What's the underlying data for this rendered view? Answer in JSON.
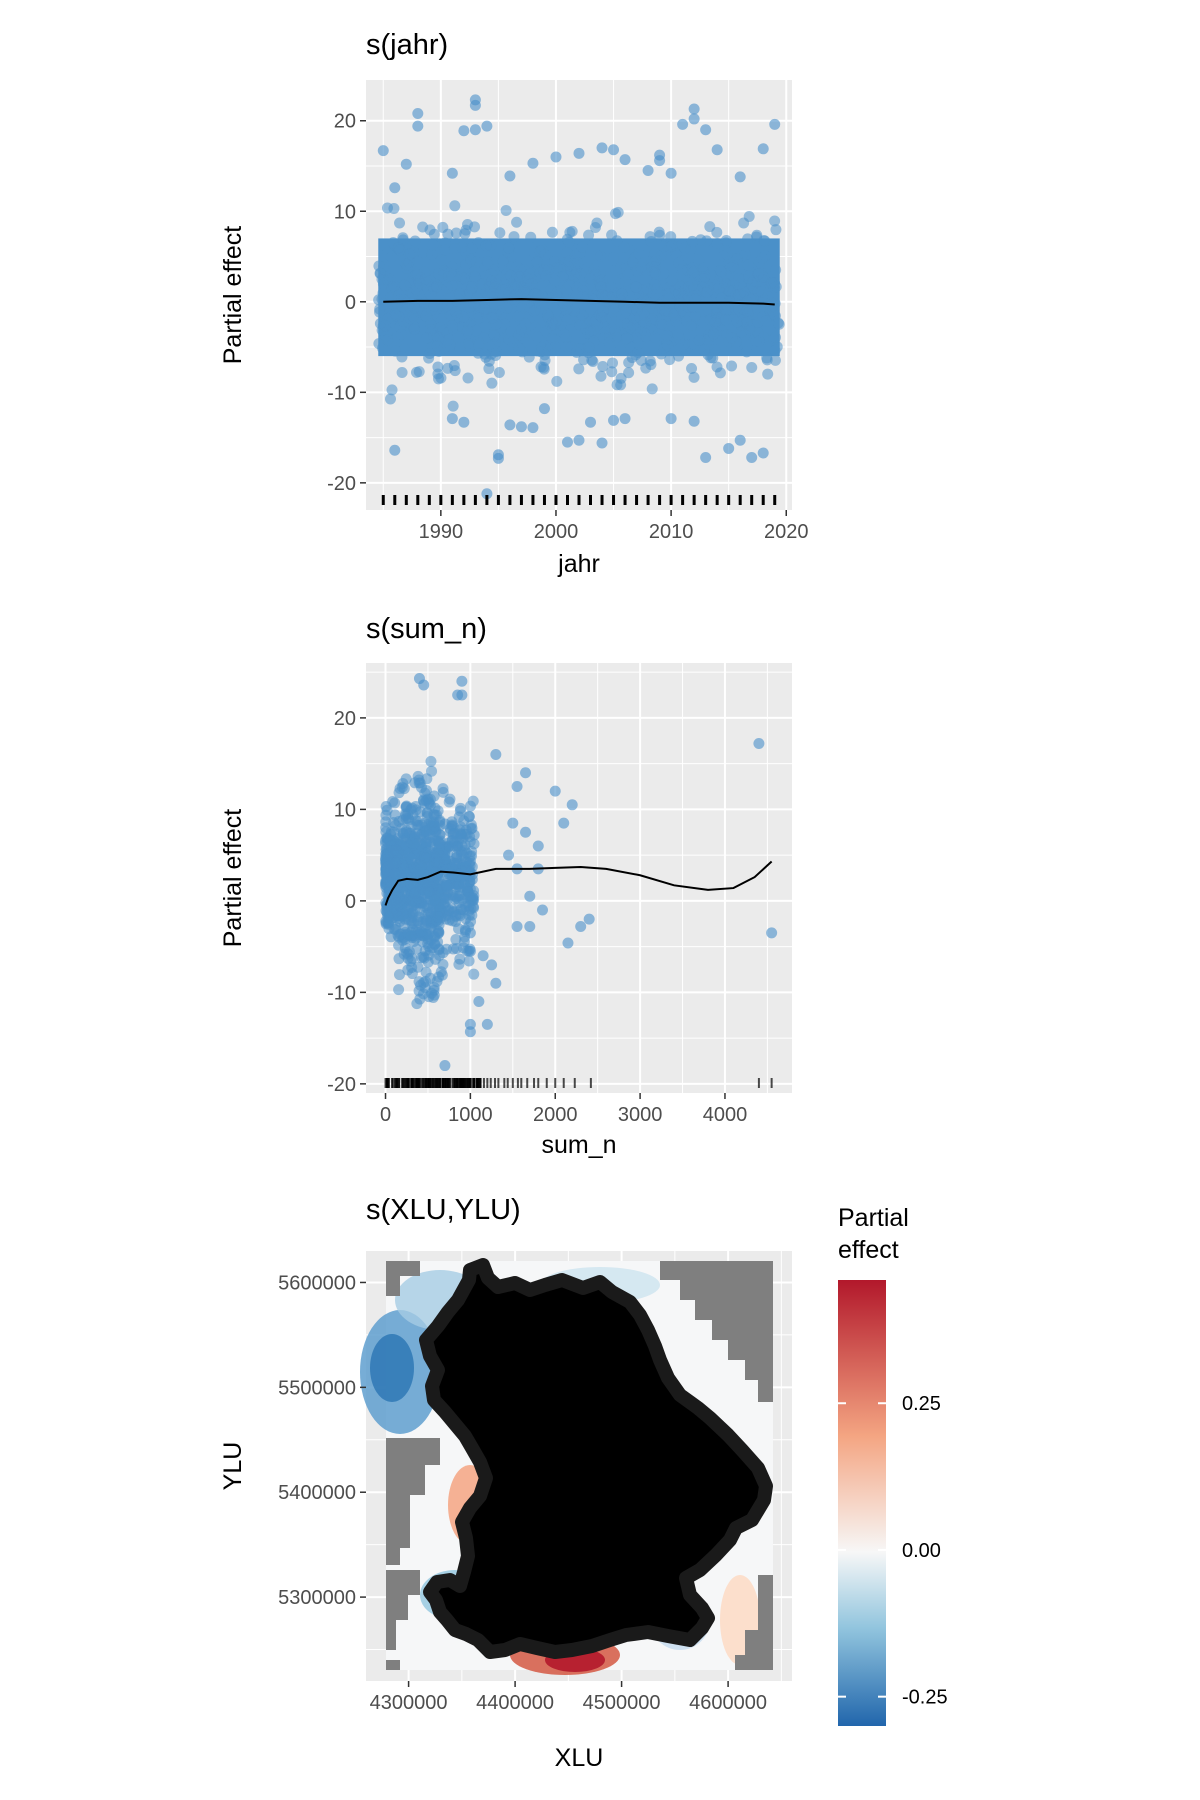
{
  "colors": {
    "panel_bg": "#ebebeb",
    "grid": "#ffffff",
    "points": "#4a90c9",
    "smooth_line": "#000000",
    "map_points": "#000000",
    "na_cells": "#7f7f7f",
    "diverging_low": "#2166ac",
    "diverging_mid": "#f7f7f7",
    "diverging_high": "#b2182b"
  },
  "chart_data": [
    {
      "type": "scatter",
      "title": "s(jahr)",
      "xlabel": "jahr",
      "ylabel": "Partial effect",
      "xlim": [
        1983.5,
        2020.5
      ],
      "ylim": [
        -23,
        24.5
      ],
      "xticks": [
        1990,
        2000,
        2010,
        2020
      ],
      "yticks": [
        -20,
        -10,
        0,
        10,
        20
      ],
      "grid": true,
      "point_cloud": {
        "x_range": [
          1985,
          2019
        ],
        "core_band": [
          -4,
          5
        ],
        "outer_band": [
          -11,
          12
        ],
        "years": [
          1985,
          1986,
          1987,
          1988,
          1989,
          1990,
          1991,
          1992,
          1993,
          1994,
          1995,
          1996,
          1997,
          1998,
          1999,
          2000,
          2001,
          2002,
          2003,
          2004,
          2005,
          2006,
          2007,
          2008,
          2009,
          2010,
          2011,
          2012,
          2013,
          2014,
          2015,
          2016,
          2017,
          2018,
          2019
        ]
      },
      "outliers": [
        [
          1985,
          16.7
        ],
        [
          1986,
          12.6
        ],
        [
          1987,
          15.2
        ],
        [
          1988,
          20.8
        ],
        [
          1988,
          19.4
        ],
        [
          1991,
          14.2
        ],
        [
          1992,
          18.9
        ],
        [
          1993,
          22.3
        ],
        [
          1993,
          21.7
        ],
        [
          1993,
          19.0
        ],
        [
          1994,
          19.4
        ],
        [
          1996,
          13.9
        ],
        [
          1998,
          15.3
        ],
        [
          2000,
          16.0
        ],
        [
          2002,
          16.4
        ],
        [
          2004,
          17.0
        ],
        [
          2005,
          16.8
        ],
        [
          2006,
          15.7
        ],
        [
          2008,
          14.5
        ],
        [
          2009,
          16.2
        ],
        [
          2009,
          15.6
        ],
        [
          2010,
          14.2
        ],
        [
          2011,
          19.6
        ],
        [
          2012,
          21.3
        ],
        [
          2012,
          20.2
        ],
        [
          2013,
          19.0
        ],
        [
          2014,
          16.8
        ],
        [
          2016,
          13.8
        ],
        [
          2018,
          16.9
        ],
        [
          2019,
          19.6
        ],
        [
          1986,
          -16.4
        ],
        [
          1991,
          -12.9
        ],
        [
          1992,
          -13.3
        ],
        [
          1995,
          -16.9
        ],
        [
          1995,
          -17.3
        ],
        [
          1996,
          -13.6
        ],
        [
          1997,
          -13.8
        ],
        [
          1998,
          -13.9
        ],
        [
          1999,
          -11.8
        ],
        [
          2001,
          -15.5
        ],
        [
          2002,
          -15.3
        ],
        [
          2003,
          -13.3
        ],
        [
          2004,
          -15.6
        ],
        [
          2005,
          -13.1
        ],
        [
          2006,
          -12.9
        ],
        [
          2010,
          -12.9
        ],
        [
          2012,
          -13.2
        ],
        [
          2013,
          -17.2
        ],
        [
          2015,
          -16.2
        ],
        [
          2016,
          -15.3
        ],
        [
          2017,
          -17.2
        ],
        [
          2018,
          -16.7
        ],
        [
          1994,
          -21.2
        ]
      ],
      "smooth": {
        "x": [
          1985,
          1988,
          1991,
          1994,
          1997,
          2000,
          2003,
          2006,
          2009,
          2012,
          2015,
          2018,
          2019
        ],
        "y": [
          0.0,
          0.1,
          0.1,
          0.2,
          0.3,
          0.2,
          0.1,
          0.0,
          -0.1,
          -0.1,
          -0.1,
          -0.2,
          -0.3
        ]
      },
      "rug": [
        1985,
        1986,
        1987,
        1988,
        1989,
        1990,
        1991,
        1992,
        1993,
        1994,
        1995,
        1996,
        1997,
        1998,
        1999,
        2000,
        2001,
        2002,
        2003,
        2004,
        2005,
        2006,
        2007,
        2008,
        2009,
        2010,
        2011,
        2012,
        2013,
        2014,
        2015,
        2016,
        2017,
        2018,
        2019
      ]
    },
    {
      "type": "scatter",
      "title": "s(sum_n)",
      "xlabel": "sum_n",
      "ylabel": "Partial effect",
      "xlim": [
        -230,
        4790
      ],
      "ylim": [
        -21,
        26
      ],
      "xticks": [
        0,
        1000,
        2000,
        3000,
        4000
      ],
      "yticks": [
        -20,
        -10,
        0,
        10,
        20
      ],
      "grid": true,
      "point_cloud": {
        "x_range": [
          0,
          1200
        ],
        "core_band": [
          -5,
          10
        ],
        "spread": "widest near sum_n 200-800"
      },
      "outliers": [
        [
          400,
          24.3
        ],
        [
          450,
          23.6
        ],
        [
          900,
          24.0
        ],
        [
          850,
          22.5
        ],
        [
          900,
          22.5
        ],
        [
          1300,
          16.0
        ],
        [
          1550,
          12.5
        ],
        [
          1650,
          14.0
        ],
        [
          2000,
          12.0
        ],
        [
          2200,
          10.5
        ],
        [
          1500,
          8.5
        ],
        [
          1650,
          7.5
        ],
        [
          1800,
          6.0
        ],
        [
          2100,
          8.5
        ],
        [
          1450,
          5.0
        ],
        [
          1550,
          3.5
        ],
        [
          1800,
          3.5
        ],
        [
          1700,
          0.5
        ],
        [
          1850,
          -1.0
        ],
        [
          1550,
          -2.8
        ],
        [
          1700,
          -2.8
        ],
        [
          2150,
          -4.6
        ],
        [
          2400,
          -2.0
        ],
        [
          2300,
          -2.8
        ],
        [
          4400,
          17.2
        ],
        [
          4550,
          -3.5
        ],
        [
          1000,
          -3.5
        ],
        [
          1000,
          -5.5
        ],
        [
          1150,
          -6.0
        ],
        [
          1250,
          -7.0
        ],
        [
          1300,
          -9.0
        ],
        [
          1100,
          -11.0
        ],
        [
          1000,
          -13.5
        ],
        [
          1200,
          -13.5
        ],
        [
          1000,
          -14.3
        ],
        [
          700,
          -18.0
        ]
      ],
      "smooth": {
        "x": [
          0,
          30,
          80,
          150,
          250,
          380,
          500,
          650,
          800,
          1000,
          1300,
          1700,
          2000,
          2300,
          2600,
          3000,
          3400,
          3800,
          4100,
          4350,
          4550
        ],
        "y": [
          -0.5,
          0.3,
          1.2,
          2.2,
          2.4,
          2.3,
          2.6,
          3.2,
          3.1,
          2.9,
          3.5,
          3.5,
          3.6,
          3.7,
          3.5,
          2.8,
          1.7,
          1.2,
          1.4,
          2.6,
          4.3
        ]
      },
      "rug": [
        0,
        40,
        80,
        120,
        160,
        200,
        240,
        280,
        320,
        360,
        400,
        440,
        480,
        520,
        560,
        600,
        640,
        680,
        720,
        760,
        800,
        840,
        880,
        920,
        960,
        1000,
        1040,
        1080,
        1120,
        1160,
        1200,
        1240,
        1290,
        1330,
        1400,
        1440,
        1500,
        1560,
        1600,
        1670,
        1750,
        1800,
        1900,
        2000,
        2100,
        2230,
        2420,
        4400,
        4550
      ]
    },
    {
      "type": "heatmap",
      "title": "s(XLU,YLU)",
      "xlabel": "XLU",
      "ylabel": "YLU",
      "xlim": [
        4260000,
        4660000
      ],
      "ylim": [
        5220000,
        5630000
      ],
      "xticks": [
        4300000,
        4400000,
        4500000,
        4600000
      ],
      "xtick_labels": [
        "4300000",
        "4400000",
        "4500000",
        "4600000"
      ],
      "yticks": [
        5300000,
        5400000,
        5500000,
        5600000
      ],
      "ytick_labels": [
        "5300000",
        "5400000",
        "5500000",
        "5600000"
      ],
      "grid": true,
      "legend": {
        "title": "Partial effect",
        "placement": "right",
        "range": [
          -0.3,
          0.46
        ],
        "ticks": [
          0.25,
          0.0,
          -0.25
        ],
        "tick_labels": [
          "0.25",
          "0.00",
          "-0.25"
        ]
      },
      "surface": {
        "low_region": "north-west (XLU 4280000-4340000, YLU 5460000-5560000), about -0.30",
        "high_region": "south-centre (XLU 4400000-4510000, YLU 5230000-5260000), about 0.45",
        "mid_high": "west edge near YLU 5330000-5400000, about 0.20",
        "na_regions": "grey corners outside the data hull (north-east, west, south-west, south-east)"
      },
      "observations": "dense black points covering the study area outline (approximately Bavaria)"
    }
  ]
}
